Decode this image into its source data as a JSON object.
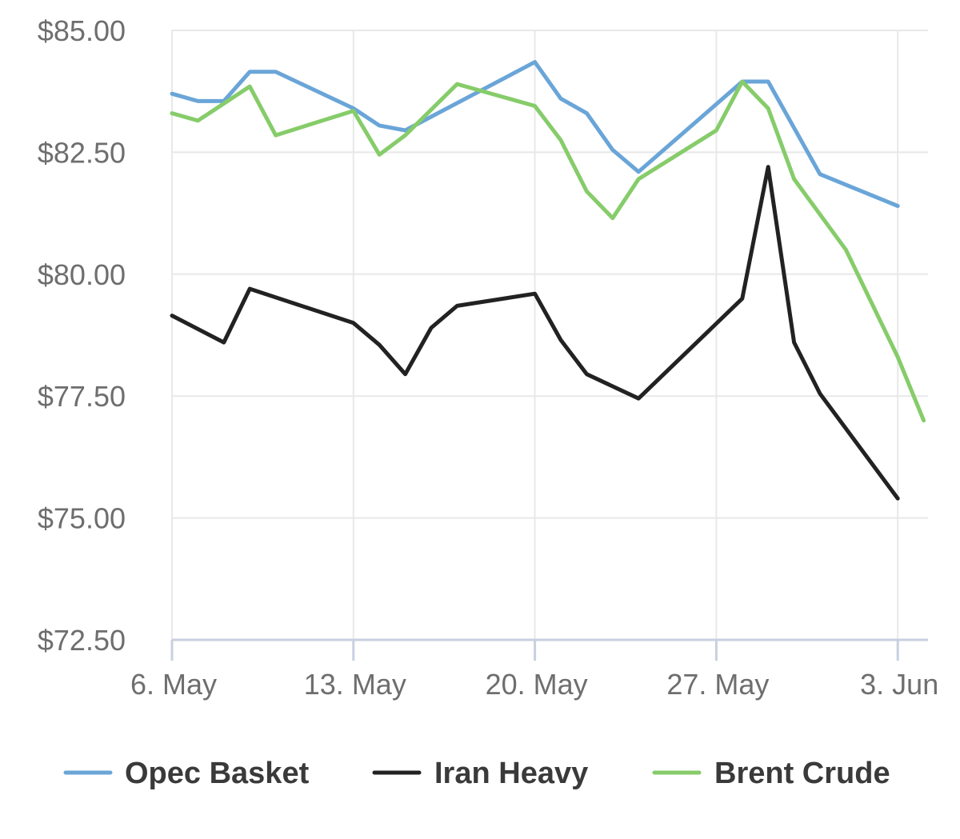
{
  "chart_data": {
    "type": "line",
    "title": "",
    "xlabel": "",
    "ylabel": "",
    "ylim": [
      72.5,
      85
    ],
    "y_ticks": [
      "$72.50",
      "$75.00",
      "$77.50",
      "$80.00",
      "$82.50",
      "$85.00"
    ],
    "y_tick_values": [
      72.5,
      75,
      77.5,
      80,
      82.5,
      85
    ],
    "x_ticks": [
      "6. May",
      "13. May",
      "20. May",
      "27. May",
      "3. Jun"
    ],
    "x_tick_days": [
      0,
      7,
      14,
      21,
      28
    ],
    "grid": true,
    "legend_position": "bottom",
    "series": [
      {
        "name": "Opec Basket",
        "color": "#6aa5d8",
        "points": [
          [
            0,
            83.7
          ],
          [
            1,
            83.55
          ],
          [
            2,
            83.55
          ],
          [
            3,
            84.15
          ],
          [
            4,
            84.15
          ],
          [
            7,
            83.4
          ],
          [
            8,
            83.05
          ],
          [
            9,
            82.95
          ],
          [
            14,
            84.35
          ],
          [
            15,
            83.6
          ],
          [
            16,
            83.3
          ],
          [
            17,
            82.55
          ],
          [
            18,
            82.1
          ],
          [
            22,
            83.95
          ],
          [
            23,
            83.95
          ],
          [
            25,
            82.05
          ],
          [
            28,
            81.4
          ]
        ]
      },
      {
        "name": "Iran Heavy",
        "color": "#222222",
        "points": [
          [
            0,
            79.15
          ],
          [
            2,
            78.6
          ],
          [
            3,
            79.7
          ],
          [
            7,
            79
          ],
          [
            8,
            78.55
          ],
          [
            9,
            77.95
          ],
          [
            10,
            78.9
          ],
          [
            11,
            79.35
          ],
          [
            14,
            79.6
          ],
          [
            15,
            78.65
          ],
          [
            16,
            77.95
          ],
          [
            18,
            77.45
          ],
          [
            22,
            79.5
          ],
          [
            23,
            82.2
          ],
          [
            24,
            78.6
          ],
          [
            25,
            77.55
          ],
          [
            28,
            75.4
          ]
        ]
      },
      {
        "name": "Brent Crude",
        "color": "#86cc6a",
        "points": [
          [
            0,
            83.3
          ],
          [
            1,
            83.15
          ],
          [
            3,
            83.85
          ],
          [
            4,
            82.85
          ],
          [
            7,
            83.35
          ],
          [
            8,
            82.45
          ],
          [
            9,
            82.85
          ],
          [
            11,
            83.9
          ],
          [
            14,
            83.45
          ],
          [
            15,
            82.75
          ],
          [
            16,
            81.7
          ],
          [
            17,
            81.15
          ],
          [
            18,
            81.95
          ],
          [
            21,
            82.95
          ],
          [
            22,
            83.95
          ],
          [
            23,
            83.4
          ],
          [
            24,
            81.95
          ],
          [
            26,
            80.5
          ],
          [
            28,
            78.3
          ],
          [
            29,
            77
          ]
        ]
      }
    ]
  }
}
